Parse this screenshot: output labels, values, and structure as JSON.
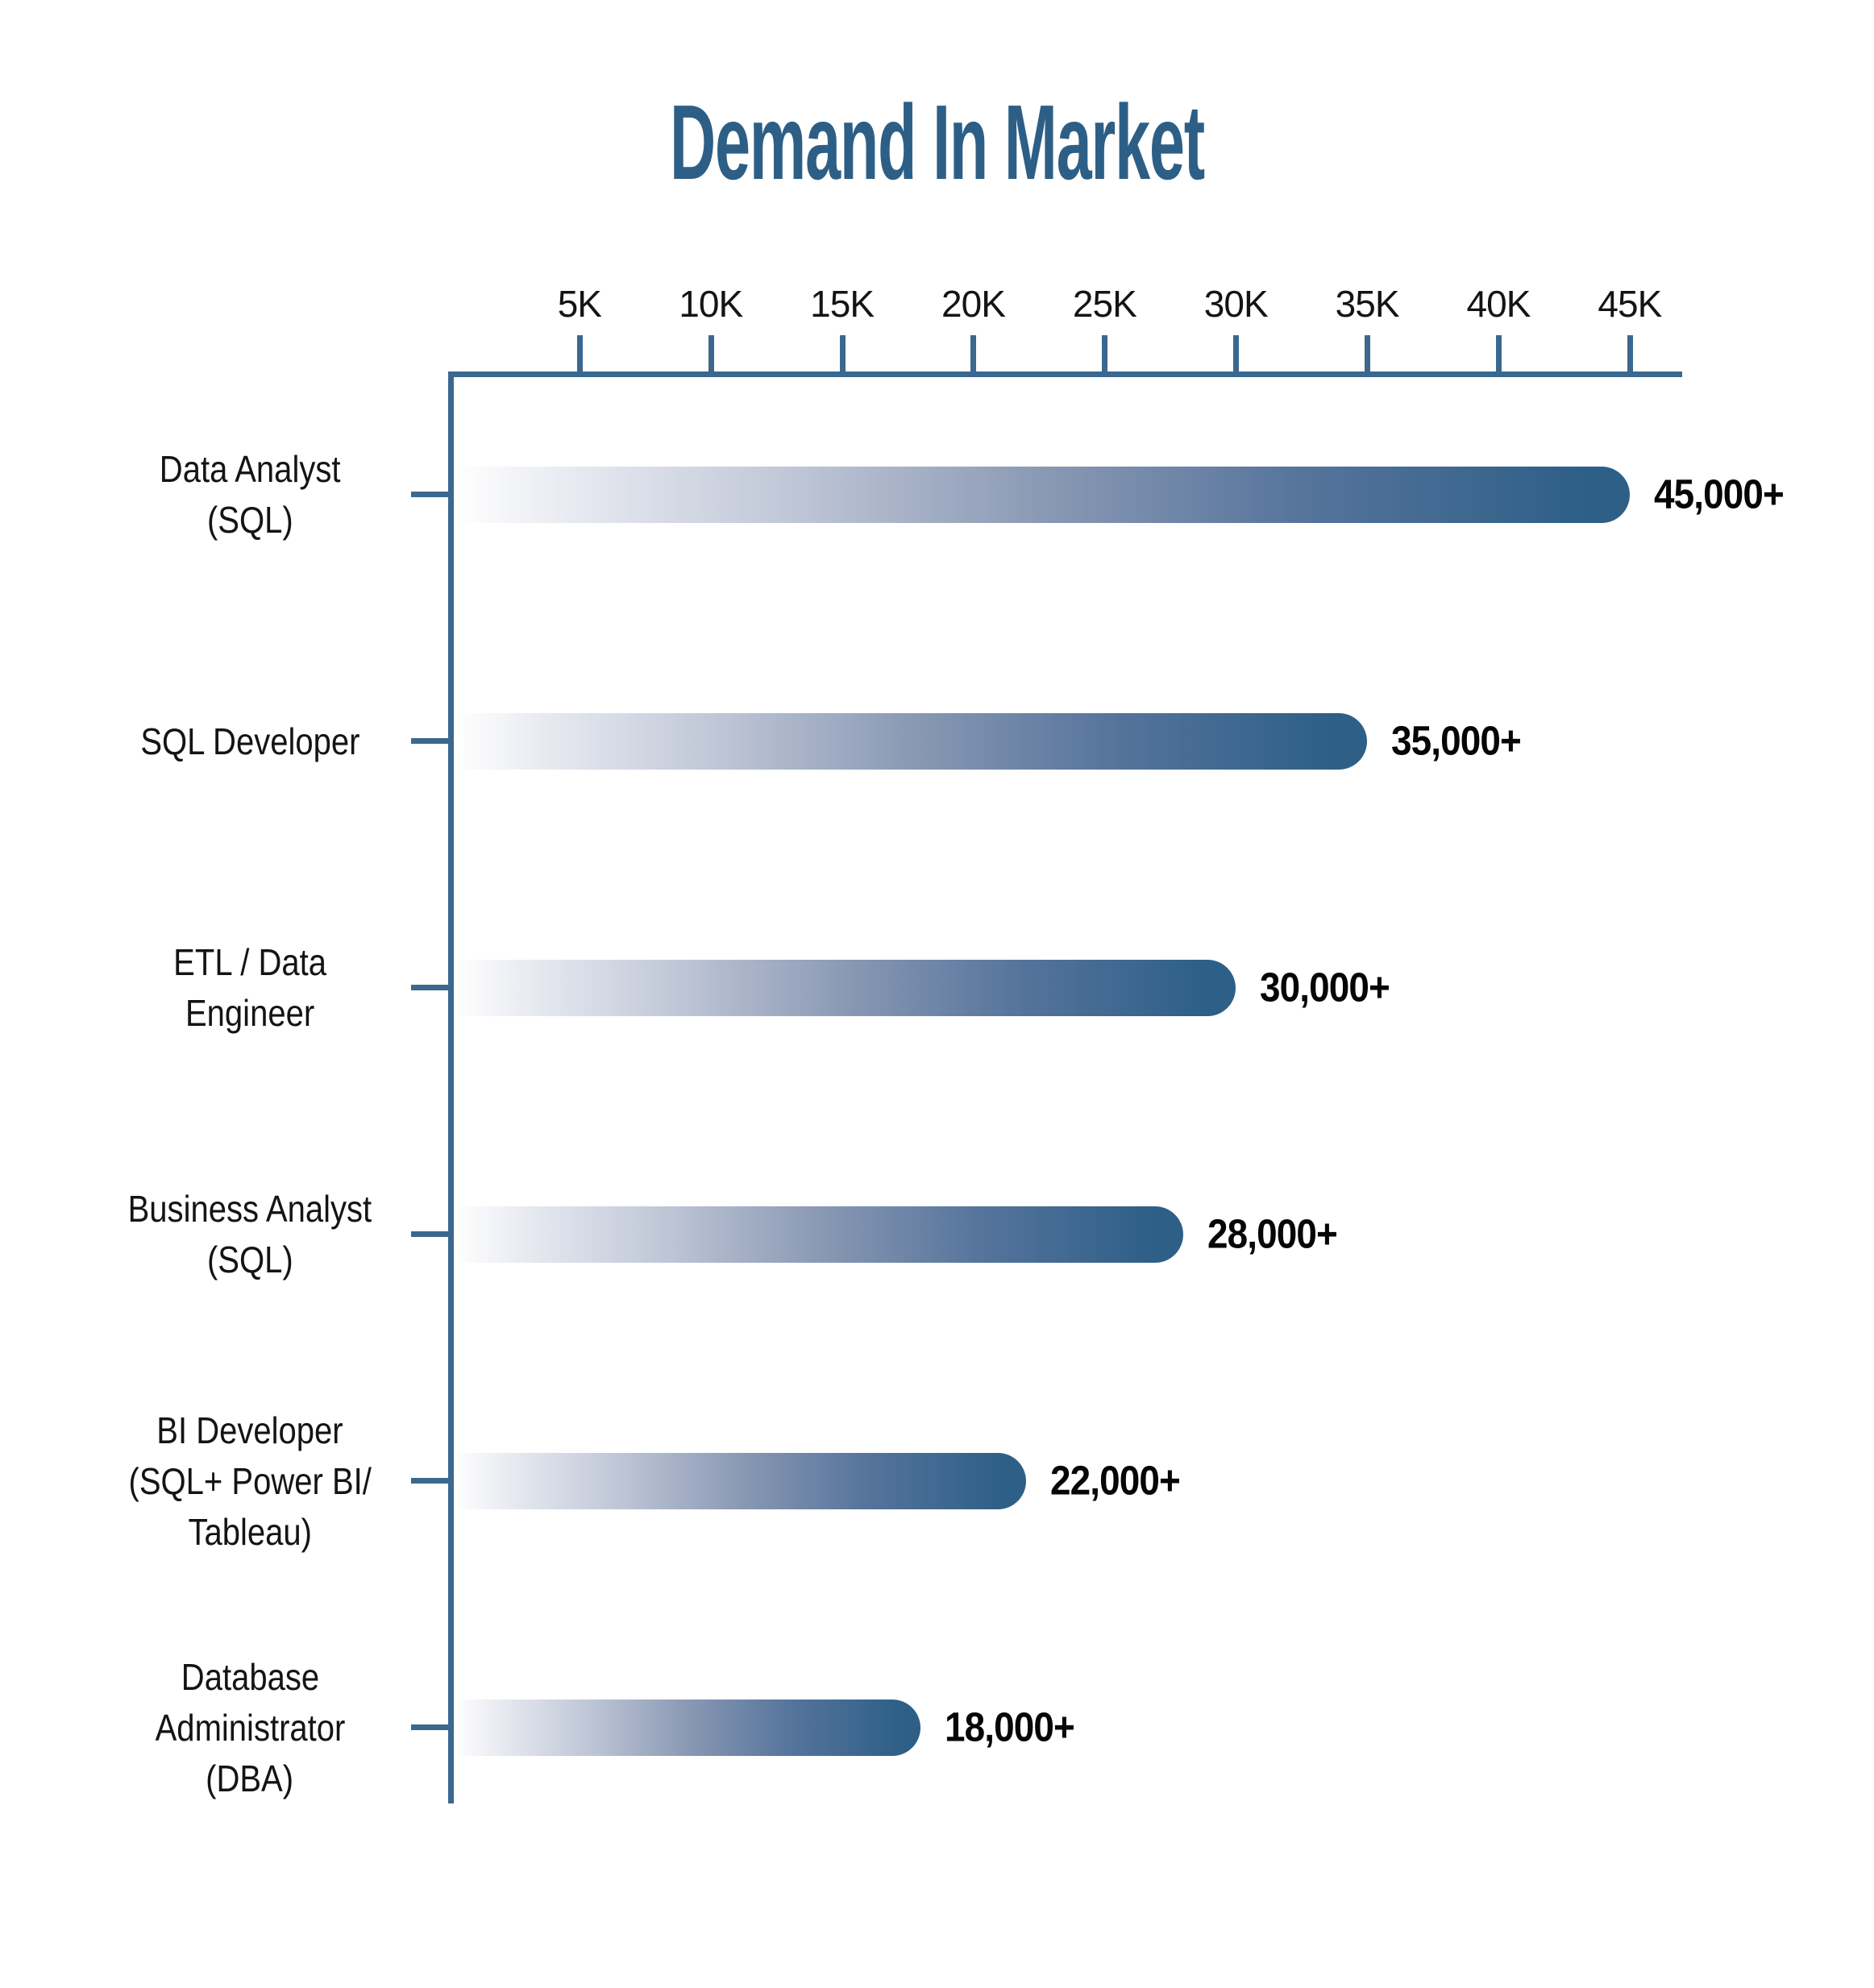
{
  "title": "Demand In Market",
  "chart_data": {
    "type": "bar",
    "orientation": "horizontal",
    "title": "Demand In Market",
    "categories": [
      "Data Analyst (SQL)",
      "SQL Developer",
      "ETL / Data Engineer",
      "Business Analyst (SQL)",
      "BI Developer (SQL+ Power BI/ Tableau)",
      "Database Administrator (DBA)"
    ],
    "category_lines": [
      [
        "Data Analyst",
        "(SQL)"
      ],
      [
        "SQL Developer"
      ],
      [
        "ETL / Data",
        "Engineer"
      ],
      [
        "Business Analyst",
        "(SQL)"
      ],
      [
        "BI Developer",
        "(SQL+ Power BI/",
        "Tableau)"
      ],
      [
        "Database",
        "Administrator",
        "(DBA)"
      ]
    ],
    "values": [
      45000,
      35000,
      30000,
      28000,
      22000,
      18000
    ],
    "value_labels": [
      "45,000+",
      "35,000+",
      "30,000+",
      "28,000+",
      "22,000+",
      "18,000+"
    ],
    "x_tick_labels": [
      "5K",
      "10K",
      "15K",
      "20K",
      "25K",
      "30K",
      "35K",
      "40K",
      "45K"
    ],
    "x_tick_values": [
      5000,
      10000,
      15000,
      20000,
      25000,
      30000,
      35000,
      40000,
      45000
    ],
    "xlim": [
      0,
      47000
    ],
    "grid": false,
    "legend": "none",
    "colors": {
      "title": "#2d5f86",
      "axis": "#3a688f",
      "bar_gradient_start": "#ffffff",
      "bar_gradient_mid": "#8a99b4",
      "bar_gradient_end": "#2d5f87",
      "category_text": "#141414",
      "value_text": "#060606"
    }
  }
}
